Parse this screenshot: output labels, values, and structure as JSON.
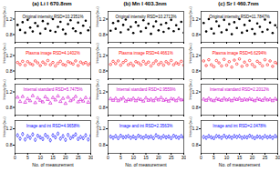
{
  "chart_data": [
    {
      "type": "scatter",
      "title": "(a) Li I 670.8nm",
      "annotation": "Original intensity RSD=10.2351%",
      "y_label": "Intensity (a.u.)",
      "tick_labels": "y",
      "x": [
        1,
        2,
        3,
        4,
        5,
        6,
        7,
        8,
        9,
        10,
        11,
        12,
        13,
        14,
        15,
        16,
        17,
        18,
        19,
        20,
        21,
        22,
        23,
        24,
        25,
        26,
        27,
        28,
        29,
        30
      ],
      "values": [
        1.05,
        0.92,
        1.12,
        0.85,
        1.18,
        0.98,
        0.88,
        1.1,
        1.02,
        0.83,
        1.15,
        0.95,
        1.08,
        0.9,
        1.2,
        0.87,
        1.0,
        1.13,
        0.93,
        0.82,
        1.07,
        1.17,
        0.96,
        0.89,
        1.11,
        0.84,
        1.03,
        1.16,
        0.91,
        0.99
      ],
      "color": "#000000",
      "marker": "filled_circle",
      "xlim": [
        0,
        30
      ],
      "xticks": [
        0,
        5,
        10,
        15,
        20,
        25,
        30
      ],
      "ylim": [
        0.6,
        1.4
      ],
      "yticks": [
        0.8,
        1.2
      ]
    },
    {
      "type": "scatter",
      "annotation": "Plasma image RSD=4.1402%",
      "y_label": "Intensity (a.u.)",
      "tick_labels": "y",
      "x": [
        1,
        2,
        3,
        4,
        5,
        6,
        7,
        8,
        9,
        10,
        11,
        12,
        13,
        14,
        15,
        16,
        17,
        18,
        19,
        20,
        21,
        22,
        23,
        24,
        25,
        26,
        27,
        28,
        29,
        30
      ],
      "values": [
        1.02,
        0.97,
        1.05,
        0.95,
        1.04,
        0.99,
        0.96,
        1.06,
        1.01,
        0.94,
        1.03,
        0.98,
        1.07,
        0.96,
        1.02,
        0.93,
        1.0,
        1.05,
        0.97,
        0.95,
        1.04,
        1.01,
        0.98,
        1.06,
        0.94,
        1.03,
        0.99,
        1.02,
        0.96,
        1.0
      ],
      "color": "#ff0000",
      "marker": "circle",
      "xlim": [
        0,
        30
      ],
      "xticks": [
        0,
        5,
        10,
        15,
        20,
        25,
        30
      ],
      "ylim": [
        0.6,
        1.4
      ],
      "yticks": [
        0.8,
        1.2
      ]
    },
    {
      "type": "scatter",
      "annotation": "Internal standard RSD=5.7475%",
      "y_label": "Intensity (a.u.)",
      "tick_labels": "y",
      "x": [
        1,
        2,
        3,
        4,
        5,
        6,
        7,
        8,
        9,
        10,
        11,
        12,
        13,
        14,
        15,
        16,
        17,
        18,
        19,
        20,
        21,
        22,
        23,
        24,
        25,
        26,
        27,
        28,
        29,
        30
      ],
      "values": [
        1.06,
        0.95,
        1.08,
        0.93,
        1.02,
        0.97,
        1.1,
        0.92,
        1.04,
        0.98,
        0.94,
        1.07,
        1.0,
        0.91,
        1.05,
        0.99,
        1.09,
        0.95,
        1.03,
        0.9,
        1.06,
        0.97,
        1.01,
        1.08,
        0.94,
        1.0,
        0.96,
        1.05,
        0.93,
        1.04
      ],
      "color": "#cc00cc",
      "marker": "triangle",
      "xlim": [
        0,
        30
      ],
      "xticks": [
        0,
        5,
        10,
        15,
        20,
        25,
        30
      ],
      "ylim": [
        0.6,
        1.4
      ],
      "yticks": [
        0.8,
        1.2
      ]
    },
    {
      "type": "scatter",
      "annotation": "Image and int RSD=4.9658%",
      "y_label": "Intensity (a.u.)",
      "x_label": "No. of measurement",
      "x": [
        1,
        2,
        3,
        4,
        5,
        6,
        7,
        8,
        9,
        10,
        11,
        12,
        13,
        14,
        15,
        16,
        17,
        18,
        19,
        20,
        21,
        22,
        23,
        24,
        25,
        26,
        27,
        28,
        29,
        30
      ],
      "values": [
        1.04,
        0.96,
        1.07,
        0.94,
        1.02,
        0.98,
        1.06,
        0.93,
        1.03,
        0.99,
        0.95,
        1.05,
        1.0,
        0.92,
        1.04,
        0.99,
        1.08,
        0.96,
        1.02,
        0.93,
        1.05,
        0.97,
        1.01,
        1.06,
        0.95,
        1.0,
        0.97,
        1.04,
        0.94,
        1.03
      ],
      "color": "#0000ff",
      "marker": "diamond",
      "xlim": [
        0,
        30
      ],
      "xticks": [
        0,
        5,
        10,
        15,
        20,
        25,
        30
      ],
      "ylim": [
        0.6,
        1.4
      ],
      "yticks": [
        0.8,
        1.2
      ]
    },
    {
      "type": "scatter",
      "title": "(b) Mn I 403.3nm",
      "annotation": "Original intensity RSD=10.2713%",
      "y_label": "Intensity (a.u.)",
      "tick_labels": "y",
      "x": [
        1,
        2,
        3,
        4,
        5,
        6,
        7,
        8,
        9,
        10,
        11,
        12,
        13,
        14,
        15,
        16,
        17,
        18,
        19,
        20,
        21,
        22,
        23,
        24,
        25,
        26,
        27,
        28,
        29,
        30
      ],
      "values": [
        0.9,
        1.1,
        0.95,
        1.15,
        0.86,
        1.05,
        1.19,
        0.93,
        1.0,
        0.84,
        1.12,
        1.03,
        0.88,
        1.17,
        0.97,
        1.08,
        0.82,
        1.01,
        1.14,
        0.91,
        1.06,
        0.87,
        1.1,
        0.96,
        1.18,
        0.89,
        1.04,
        0.94,
        1.13,
        0.85
      ],
      "color": "#000000",
      "marker": "filled_circle",
      "xlim": [
        0,
        30
      ],
      "xticks": [
        0,
        5,
        10,
        15,
        20,
        25,
        30
      ],
      "ylim": [
        0.6,
        1.4
      ],
      "yticks": [
        0.8,
        1.2
      ]
    },
    {
      "type": "scatter",
      "annotation": "Plasma image RSD=4.4661%",
      "y_label": "Intensity (a.u.)",
      "tick_labels": "y",
      "x": [
        1,
        2,
        3,
        4,
        5,
        6,
        7,
        8,
        9,
        10,
        11,
        12,
        13,
        14,
        15,
        16,
        17,
        18,
        19,
        20,
        21,
        22,
        23,
        24,
        25,
        26,
        27,
        28,
        29,
        30
      ],
      "values": [
        0.97,
        1.05,
        0.99,
        1.06,
        0.95,
        1.02,
        1.07,
        0.96,
        1.0,
        0.94,
        1.04,
        1.01,
        0.96,
        1.05,
        0.98,
        1.03,
        0.93,
        1.0,
        1.06,
        0.97,
        1.02,
        0.95,
        1.04,
        0.99,
        1.07,
        0.96,
        1.01,
        0.98,
        1.05,
        0.95
      ],
      "color": "#ff0000",
      "marker": "circle",
      "xlim": [
        0,
        30
      ],
      "xticks": [
        0,
        5,
        10,
        15,
        20,
        25,
        30
      ],
      "ylim": [
        0.6,
        1.4
      ],
      "yticks": [
        0.8,
        1.2
      ]
    },
    {
      "type": "scatter",
      "annotation": "Internal standard RSD=2.9559%",
      "y_label": "Intensity (a.u.)",
      "tick_labels": "y",
      "x": [
        1,
        2,
        3,
        4,
        5,
        6,
        7,
        8,
        9,
        10,
        11,
        12,
        13,
        14,
        15,
        16,
        17,
        18,
        19,
        20,
        21,
        22,
        23,
        24,
        25,
        26,
        27,
        28,
        29,
        30
      ],
      "values": [
        1.02,
        0.98,
        1.03,
        0.97,
        1.01,
        1.04,
        0.96,
        1.0,
        0.99,
        1.03,
        0.97,
        1.02,
        1.0,
        0.96,
        1.04,
        0.98,
        1.01,
        0.97,
        1.03,
        0.99,
        1.05,
        0.98,
        1.0,
        0.96,
        1.02,
        1.01,
        0.97,
        1.03,
        0.99,
        1.0
      ],
      "color": "#cc00cc",
      "marker": "triangle",
      "xlim": [
        0,
        30
      ],
      "xticks": [
        0,
        5,
        10,
        15,
        20,
        25,
        30
      ],
      "ylim": [
        0.6,
        1.4
      ],
      "yticks": [
        0.8,
        1.2
      ]
    },
    {
      "type": "scatter",
      "annotation": "Image and int RSD=2.3563%",
      "y_label": "Intensity (a.u.)",
      "x_label": "No. of measurement",
      "x": [
        1,
        2,
        3,
        4,
        5,
        6,
        7,
        8,
        9,
        10,
        11,
        12,
        13,
        14,
        15,
        16,
        17,
        18,
        19,
        20,
        21,
        22,
        23,
        24,
        25,
        26,
        27,
        28,
        29,
        30
      ],
      "values": [
        1.01,
        0.98,
        1.02,
        0.97,
        1.03,
        0.99,
        1.0,
        1.02,
        0.98,
        1.01,
        0.97,
        1.03,
        1.0,
        0.98,
        1.02,
        0.99,
        1.01,
        0.97,
        1.04,
        1.0,
        0.98,
        1.02,
        0.99,
        1.01,
        0.97,
        1.03,
        1.0,
        0.98,
        1.02,
        0.99
      ],
      "color": "#0000ff",
      "marker": "diamond",
      "xlim": [
        0,
        30
      ],
      "xticks": [
        0,
        5,
        10,
        15,
        20,
        25,
        30
      ],
      "ylim": [
        0.6,
        1.4
      ],
      "yticks": [
        0.8,
        1.2
      ]
    },
    {
      "type": "scatter",
      "title": "(c) Sr I 460.7nm",
      "annotation": "Original intensity RSD=11.7847%",
      "y_label": "Intensity (a.u.)",
      "tick_labels": "y",
      "x": [
        1,
        2,
        3,
        4,
        5,
        6,
        7,
        8,
        9,
        10,
        11,
        12,
        13,
        14,
        15,
        16,
        17,
        18,
        19,
        20,
        21,
        22,
        23,
        24,
        25,
        26,
        27,
        28,
        29,
        30
      ],
      "values": [
        1.1,
        0.88,
        1.2,
        0.95,
        0.83,
        1.14,
        1.02,
        0.86,
        1.18,
        0.92,
        1.07,
        0.81,
        1.12,
        0.97,
        1.2,
        0.85,
        1.05,
        0.9,
        1.16,
        0.94,
        0.82,
        1.09,
        1.0,
        0.87,
        1.19,
        0.93,
        1.11,
        0.84,
        1.04,
        0.98
      ],
      "color": "#000000",
      "marker": "filled_circle",
      "xlim": [
        0,
        30
      ],
      "xticks": [
        0,
        5,
        10,
        15,
        20,
        25,
        30
      ],
      "ylim": [
        0.6,
        1.4
      ],
      "yticks": [
        0.8,
        1.2
      ]
    },
    {
      "type": "scatter",
      "annotation": "Plasma image RSD=6.6294%",
      "y_label": "Intensity (a.u.)",
      "tick_labels": "y",
      "x": [
        1,
        2,
        3,
        4,
        5,
        6,
        7,
        8,
        9,
        10,
        11,
        12,
        13,
        14,
        15,
        16,
        17,
        18,
        19,
        20,
        21,
        22,
        23,
        24,
        25,
        26,
        27,
        28,
        29,
        30
      ],
      "values": [
        1.06,
        0.94,
        1.09,
        0.96,
        0.91,
        1.07,
        1.01,
        0.93,
        1.1,
        0.95,
        1.04,
        0.9,
        1.08,
        0.98,
        1.11,
        0.92,
        1.03,
        0.95,
        1.07,
        0.97,
        0.91,
        1.05,
        1.0,
        0.93,
        1.09,
        0.96,
        1.06,
        0.92,
        1.02,
        0.99
      ],
      "color": "#ff0000",
      "marker": "circle",
      "xlim": [
        0,
        30
      ],
      "xticks": [
        0,
        5,
        10,
        15,
        20,
        25,
        30
      ],
      "ylim": [
        0.6,
        1.4
      ],
      "yticks": [
        0.8,
        1.2
      ]
    },
    {
      "type": "scatter",
      "annotation": "Internal standard RSD=2.2012%",
      "y_label": "Intensity (a.u.)",
      "tick_labels": "y",
      "x": [
        1,
        2,
        3,
        4,
        5,
        6,
        7,
        8,
        9,
        10,
        11,
        12,
        13,
        14,
        15,
        16,
        17,
        18,
        19,
        20,
        21,
        22,
        23,
        24,
        25,
        26,
        27,
        28,
        29,
        30
      ],
      "values": [
        1.01,
        0.98,
        1.03,
        0.99,
        0.97,
        1.02,
        1.0,
        0.98,
        1.03,
        0.99,
        1.01,
        0.97,
        1.02,
        1.0,
        1.03,
        0.98,
        1.01,
        0.99,
        1.02,
        1.0,
        0.97,
        1.02,
        1.0,
        0.98,
        1.03,
        0.99,
        1.01,
        0.97,
        1.02,
        1.0
      ],
      "color": "#cc00cc",
      "marker": "triangle",
      "xlim": [
        0,
        30
      ],
      "xticks": [
        0,
        5,
        10,
        15,
        20,
        25,
        30
      ],
      "ylim": [
        0.6,
        1.4
      ],
      "yticks": [
        0.8,
        1.2
      ]
    },
    {
      "type": "scatter",
      "annotation": "Image and int RSD=2.0478%",
      "y_label": "Intensity (a.u.)",
      "x_label": "No. of measurement",
      "x": [
        1,
        2,
        3,
        4,
        5,
        6,
        7,
        8,
        9,
        10,
        11,
        12,
        13,
        14,
        15,
        16,
        17,
        18,
        19,
        20,
        21,
        22,
        23,
        24,
        25,
        26,
        27,
        28,
        29,
        30
      ],
      "values": [
        1.0,
        0.98,
        1.02,
        0.99,
        0.97,
        1.02,
        1.01,
        0.98,
        1.03,
        0.99,
        1.01,
        0.98,
        1.02,
        1.0,
        1.02,
        0.98,
        1.0,
        0.99,
        1.03,
        1.0,
        0.97,
        1.01,
        1.0,
        0.98,
        1.02,
        0.99,
        1.01,
        0.98,
        1.02,
        1.0
      ],
      "color": "#0000ff",
      "marker": "diamond",
      "xlim": [
        0,
        30
      ],
      "xticks": [
        0,
        5,
        10,
        15,
        20,
        25,
        30
      ],
      "ylim": [
        0.6,
        1.4
      ],
      "yticks": [
        0.8,
        1.2
      ]
    }
  ]
}
